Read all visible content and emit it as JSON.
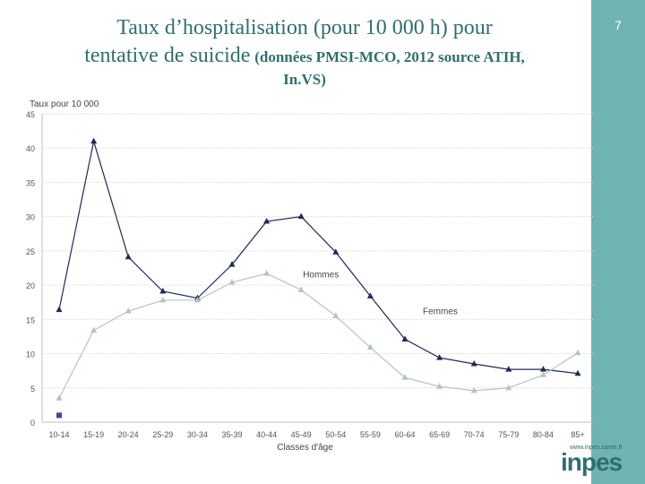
{
  "slide": {
    "title_line1": "Taux d’hospitalisation (pour 10 000 h) pour",
    "title_line2_main": "tentative de suicide",
    "title_line2_small": "(données PMSI-MCO, 2012 source ATIH,",
    "title_line3": "In.VS)",
    "page_number": "7",
    "logo_url": "www.inpes.sante.fr",
    "logo_text": "inpes"
  },
  "colors": {
    "sidebar": "#6fb3b3",
    "femmes": "#1f2a5a",
    "hommes": "#b4c4c4",
    "title": "#2f6f6f"
  },
  "chart_data": {
    "type": "line",
    "title": "",
    "ylabel": "Taux pour 10 000",
    "xlabel": "Classes d'âge",
    "ylim": [
      0,
      45
    ],
    "yticks": [
      0,
      5,
      10,
      15,
      20,
      25,
      30,
      35,
      40,
      45
    ],
    "grid": true,
    "categories": [
      "10-14",
      "15-19",
      "20-24",
      "25-29",
      "30-34",
      "35-39",
      "40-44",
      "45-49",
      "50-54",
      "55-59",
      "60-64",
      "65-69",
      "70-74",
      "75-79",
      "80-84",
      "85+"
    ],
    "series": [
      {
        "name": "Femmes",
        "values": [
          16.4,
          41.0,
          24.1,
          19.1,
          18.1,
          23.0,
          29.3,
          30.0,
          24.8,
          18.4,
          12.1,
          9.4,
          8.5,
          7.7,
          7.7,
          7.1
        ]
      },
      {
        "name": "Hommes",
        "values": [
          3.5,
          13.4,
          16.2,
          17.8,
          17.8,
          20.4,
          21.7,
          19.3,
          15.5,
          10.9,
          6.5,
          5.2,
          4.6,
          5.0,
          6.9,
          10.1
        ]
      }
    ],
    "extra_point": {
      "category": "10-14",
      "value": 1.0
    }
  }
}
